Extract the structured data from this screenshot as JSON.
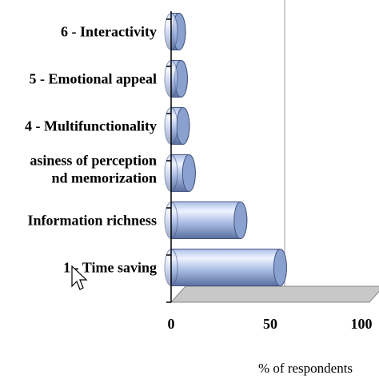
{
  "chart_data": {
    "type": "bar",
    "orientation": "horizontal",
    "three_d": true,
    "categories": [
      "1 - Time saving",
      "Information richness",
      "asiness of perception|nd memorization",
      "4 - Multifunctionality",
      "5 - Emotional appeal",
      "6 - Interactivity"
    ],
    "series": [
      {
        "values": [
          55,
          35,
          9,
          6,
          5,
          4
        ]
      }
    ],
    "xlabel": "% of respondents",
    "ylabel": "",
    "title": "",
    "xlim": [
      0,
      100
    ],
    "x_ticks": [
      "0",
      "50",
      "100"
    ],
    "grid": true,
    "legend": "none",
    "colors": {
      "bar_light": "#eef3ff",
      "bar_mid": "#aebfe6",
      "bar_dark": "#5a6f9f",
      "bar_cap": "#8aa0cf",
      "axis": "#000000",
      "gridline": "#999999",
      "floor": "#c8c8c8"
    }
  }
}
